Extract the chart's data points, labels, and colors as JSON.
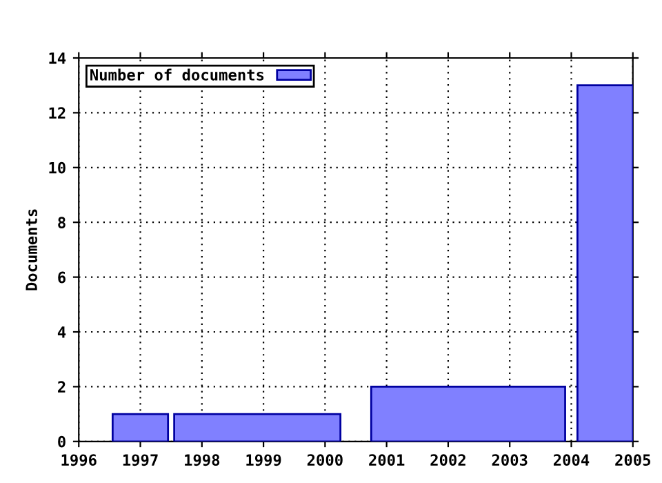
{
  "chart_data": {
    "type": "histogram",
    "ylabel": "Documents",
    "bins": [
      1996.55,
      1997.45,
      1997.55,
      2000.25,
      2000.75,
      2003.9,
      2004.1,
      2005
    ],
    "series": [
      {
        "name": "Number of documents",
        "color": "#8080ff",
        "values": [
          1,
          0,
          1,
          0,
          2,
          0,
          13
        ]
      }
    ],
    "xlim": [
      1996,
      2005
    ],
    "xticks": [
      1996,
      1997,
      1998,
      1999,
      2000,
      2001,
      2002,
      2003,
      2004,
      2005
    ],
    "ylim": [
      0,
      14
    ],
    "yticks": [
      0,
      2,
      4,
      6,
      8,
      10,
      12,
      14
    ],
    "grid": true,
    "legend": "top left"
  }
}
